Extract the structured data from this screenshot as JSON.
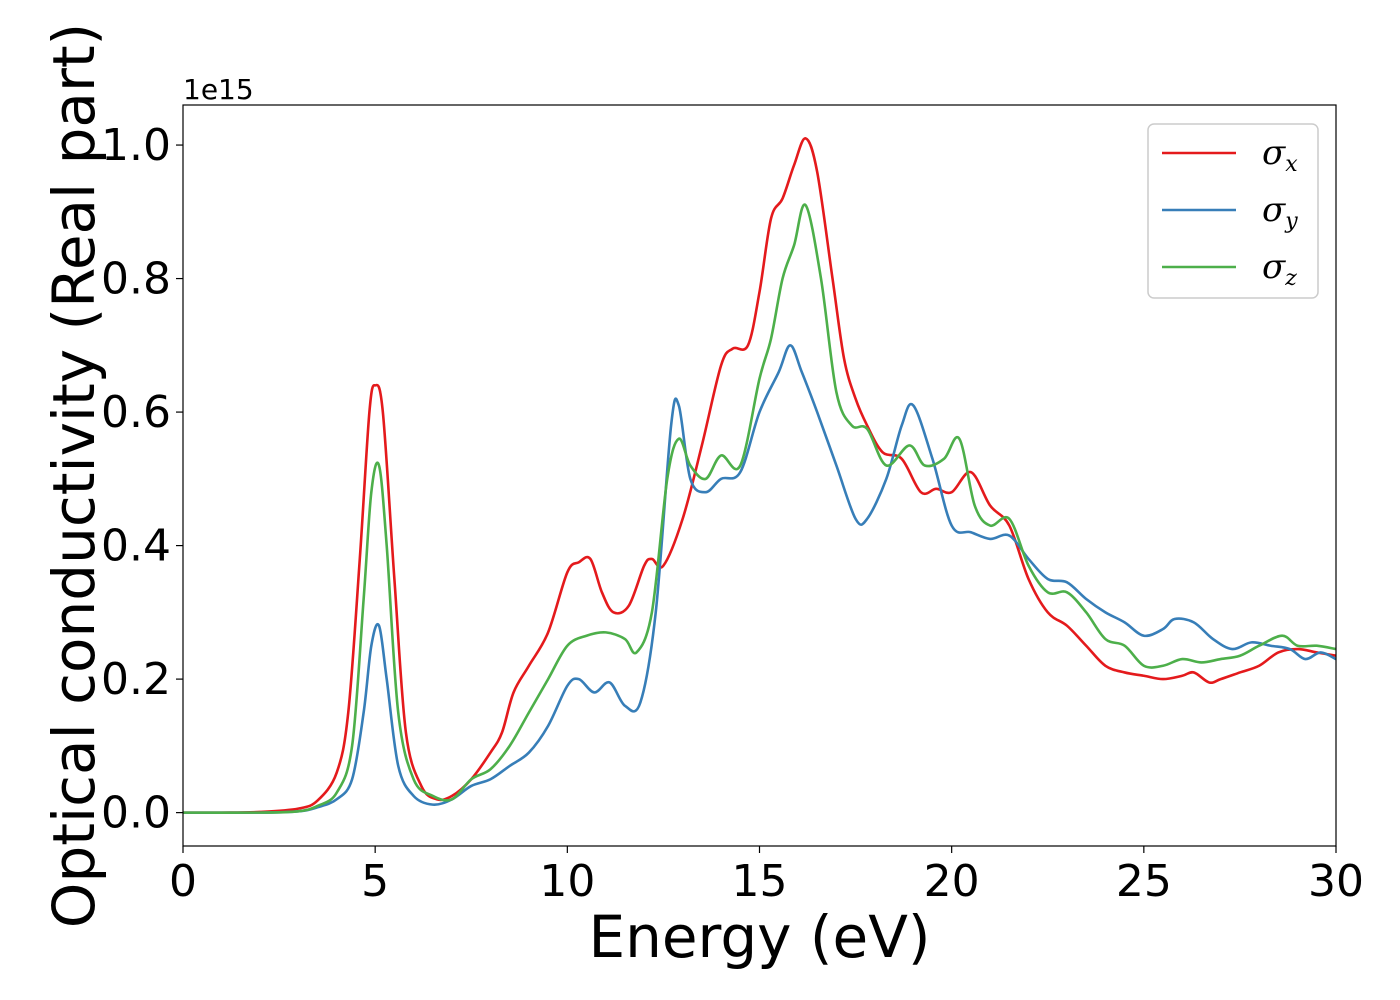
{
  "chart_data": {
    "type": "line",
    "title": "",
    "xlabel": "Energy (eV)",
    "ylabel": "Optical conductivity (Real part)",
    "y_offset_label": "1e15",
    "xlim": [
      0,
      30
    ],
    "ylim": [
      -0.05,
      1.06
    ],
    "xticks": [
      "0",
      "5",
      "10",
      "15",
      "20",
      "25",
      "30"
    ],
    "yticks": [
      "0.0",
      "0.2",
      "0.4",
      "0.6",
      "0.8",
      "1.0"
    ],
    "grid": false,
    "legend_position": "top-right",
    "series": [
      {
        "name": "σx",
        "symbol": "σ",
        "subscript": "x",
        "color": "#e41a1c",
        "points": [
          [
            0,
            0
          ],
          [
            1,
            0
          ],
          [
            2,
            0.001
          ],
          [
            3,
            0.006
          ],
          [
            3.5,
            0.018
          ],
          [
            4,
            0.06
          ],
          [
            4.3,
            0.15
          ],
          [
            4.6,
            0.38
          ],
          [
            4.85,
            0.6
          ],
          [
            5.0,
            0.64
          ],
          [
            5.2,
            0.6
          ],
          [
            5.5,
            0.35
          ],
          [
            5.8,
            0.12
          ],
          [
            6.2,
            0.04
          ],
          [
            6.6,
            0.02
          ],
          [
            7,
            0.025
          ],
          [
            7.5,
            0.05
          ],
          [
            8,
            0.09
          ],
          [
            8.3,
            0.12
          ],
          [
            8.6,
            0.18
          ],
          [
            9,
            0.22
          ],
          [
            9.5,
            0.27
          ],
          [
            10,
            0.36
          ],
          [
            10.3,
            0.375
          ],
          [
            10.6,
            0.38
          ],
          [
            10.9,
            0.33
          ],
          [
            11.2,
            0.3
          ],
          [
            11.6,
            0.31
          ],
          [
            12,
            0.37
          ],
          [
            12.2,
            0.38
          ],
          [
            12.5,
            0.37
          ],
          [
            13,
            0.44
          ],
          [
            13.5,
            0.55
          ],
          [
            14,
            0.67
          ],
          [
            14.3,
            0.695
          ],
          [
            14.7,
            0.7
          ],
          [
            15,
            0.78
          ],
          [
            15.3,
            0.89
          ],
          [
            15.6,
            0.92
          ],
          [
            15.9,
            0.97
          ],
          [
            16.2,
            1.01
          ],
          [
            16.5,
            0.96
          ],
          [
            16.9,
            0.8
          ],
          [
            17.2,
            0.68
          ],
          [
            17.5,
            0.62
          ],
          [
            17.8,
            0.58
          ],
          [
            18.2,
            0.54
          ],
          [
            18.7,
            0.53
          ],
          [
            19.2,
            0.48
          ],
          [
            19.6,
            0.485
          ],
          [
            20.0,
            0.48
          ],
          [
            20.5,
            0.51
          ],
          [
            21.0,
            0.46
          ],
          [
            21.5,
            0.43
          ],
          [
            22,
            0.35
          ],
          [
            22.5,
            0.3
          ],
          [
            23,
            0.28
          ],
          [
            23.5,
            0.25
          ],
          [
            24,
            0.22
          ],
          [
            24.5,
            0.21
          ],
          [
            25,
            0.205
          ],
          [
            25.5,
            0.2
          ],
          [
            26,
            0.205
          ],
          [
            26.3,
            0.21
          ],
          [
            26.7,
            0.195
          ],
          [
            27,
            0.2
          ],
          [
            27.5,
            0.21
          ],
          [
            28,
            0.22
          ],
          [
            28.5,
            0.24
          ],
          [
            29,
            0.245
          ],
          [
            29.5,
            0.24
          ],
          [
            30,
            0.235
          ]
        ]
      },
      {
        "name": "σy",
        "symbol": "σ",
        "subscript": "y",
        "color": "#377eb8",
        "points": [
          [
            0,
            0
          ],
          [
            2,
            0
          ],
          [
            3,
            0.002
          ],
          [
            3.5,
            0.008
          ],
          [
            4,
            0.02
          ],
          [
            4.4,
            0.05
          ],
          [
            4.7,
            0.15
          ],
          [
            4.9,
            0.25
          ],
          [
            5.1,
            0.28
          ],
          [
            5.3,
            0.2
          ],
          [
            5.6,
            0.07
          ],
          [
            6,
            0.025
          ],
          [
            6.5,
            0.012
          ],
          [
            7,
            0.02
          ],
          [
            7.5,
            0.04
          ],
          [
            8,
            0.05
          ],
          [
            8.5,
            0.07
          ],
          [
            9,
            0.09
          ],
          [
            9.5,
            0.13
          ],
          [
            10,
            0.19
          ],
          [
            10.3,
            0.2
          ],
          [
            10.7,
            0.18
          ],
          [
            11.1,
            0.195
          ],
          [
            11.5,
            0.16
          ],
          [
            11.9,
            0.165
          ],
          [
            12.3,
            0.3
          ],
          [
            12.7,
            0.58
          ],
          [
            12.9,
            0.61
          ],
          [
            13.2,
            0.5
          ],
          [
            13.6,
            0.48
          ],
          [
            14,
            0.5
          ],
          [
            14.5,
            0.51
          ],
          [
            15,
            0.6
          ],
          [
            15.5,
            0.66
          ],
          [
            15.8,
            0.7
          ],
          [
            16.1,
            0.66
          ],
          [
            16.5,
            0.6
          ],
          [
            17,
            0.52
          ],
          [
            17.5,
            0.44
          ],
          [
            17.8,
            0.44
          ],
          [
            18.3,
            0.5
          ],
          [
            18.7,
            0.58
          ],
          [
            19.0,
            0.61
          ],
          [
            19.5,
            0.53
          ],
          [
            20,
            0.43
          ],
          [
            20.5,
            0.42
          ],
          [
            21,
            0.41
          ],
          [
            21.5,
            0.415
          ],
          [
            22,
            0.38
          ],
          [
            22.5,
            0.35
          ],
          [
            23,
            0.345
          ],
          [
            23.5,
            0.32
          ],
          [
            24,
            0.3
          ],
          [
            24.5,
            0.285
          ],
          [
            25,
            0.265
          ],
          [
            25.5,
            0.275
          ],
          [
            25.8,
            0.29
          ],
          [
            26.3,
            0.285
          ],
          [
            26.8,
            0.26
          ],
          [
            27.3,
            0.245
          ],
          [
            27.8,
            0.255
          ],
          [
            28.3,
            0.25
          ],
          [
            28.8,
            0.245
          ],
          [
            29.2,
            0.23
          ],
          [
            29.6,
            0.24
          ],
          [
            30,
            0.23
          ]
        ]
      },
      {
        "name": "σz",
        "symbol": "σ",
        "subscript": "z",
        "color": "#4daf4a",
        "points": [
          [
            0,
            0
          ],
          [
            2,
            0
          ],
          [
            3,
            0.002
          ],
          [
            3.5,
            0.01
          ],
          [
            4,
            0.03
          ],
          [
            4.4,
            0.1
          ],
          [
            4.7,
            0.32
          ],
          [
            4.9,
            0.48
          ],
          [
            5.1,
            0.52
          ],
          [
            5.3,
            0.4
          ],
          [
            5.6,
            0.15
          ],
          [
            6,
            0.05
          ],
          [
            6.5,
            0.025
          ],
          [
            7,
            0.02
          ],
          [
            7.5,
            0.05
          ],
          [
            8,
            0.065
          ],
          [
            8.5,
            0.1
          ],
          [
            9,
            0.15
          ],
          [
            9.5,
            0.2
          ],
          [
            10,
            0.25
          ],
          [
            10.5,
            0.265
          ],
          [
            11,
            0.27
          ],
          [
            11.5,
            0.26
          ],
          [
            11.8,
            0.24
          ],
          [
            12.2,
            0.3
          ],
          [
            12.6,
            0.5
          ],
          [
            12.9,
            0.56
          ],
          [
            13.2,
            0.52
          ],
          [
            13.6,
            0.5
          ],
          [
            14,
            0.535
          ],
          [
            14.5,
            0.52
          ],
          [
            15,
            0.65
          ],
          [
            15.3,
            0.71
          ],
          [
            15.6,
            0.8
          ],
          [
            15.9,
            0.85
          ],
          [
            16.2,
            0.91
          ],
          [
            16.6,
            0.8
          ],
          [
            17,
            0.63
          ],
          [
            17.4,
            0.58
          ],
          [
            17.8,
            0.575
          ],
          [
            18.3,
            0.52
          ],
          [
            18.9,
            0.55
          ],
          [
            19.3,
            0.52
          ],
          [
            19.8,
            0.53
          ],
          [
            20.2,
            0.56
          ],
          [
            20.6,
            0.46
          ],
          [
            21,
            0.43
          ],
          [
            21.5,
            0.44
          ],
          [
            22,
            0.37
          ],
          [
            22.5,
            0.33
          ],
          [
            23,
            0.33
          ],
          [
            23.5,
            0.3
          ],
          [
            24,
            0.26
          ],
          [
            24.5,
            0.25
          ],
          [
            25,
            0.22
          ],
          [
            25.5,
            0.22
          ],
          [
            26,
            0.23
          ],
          [
            26.5,
            0.225
          ],
          [
            27,
            0.23
          ],
          [
            27.5,
            0.235
          ],
          [
            28,
            0.25
          ],
          [
            28.6,
            0.265
          ],
          [
            29,
            0.25
          ],
          [
            29.5,
            0.25
          ],
          [
            30,
            0.245
          ]
        ]
      }
    ]
  }
}
